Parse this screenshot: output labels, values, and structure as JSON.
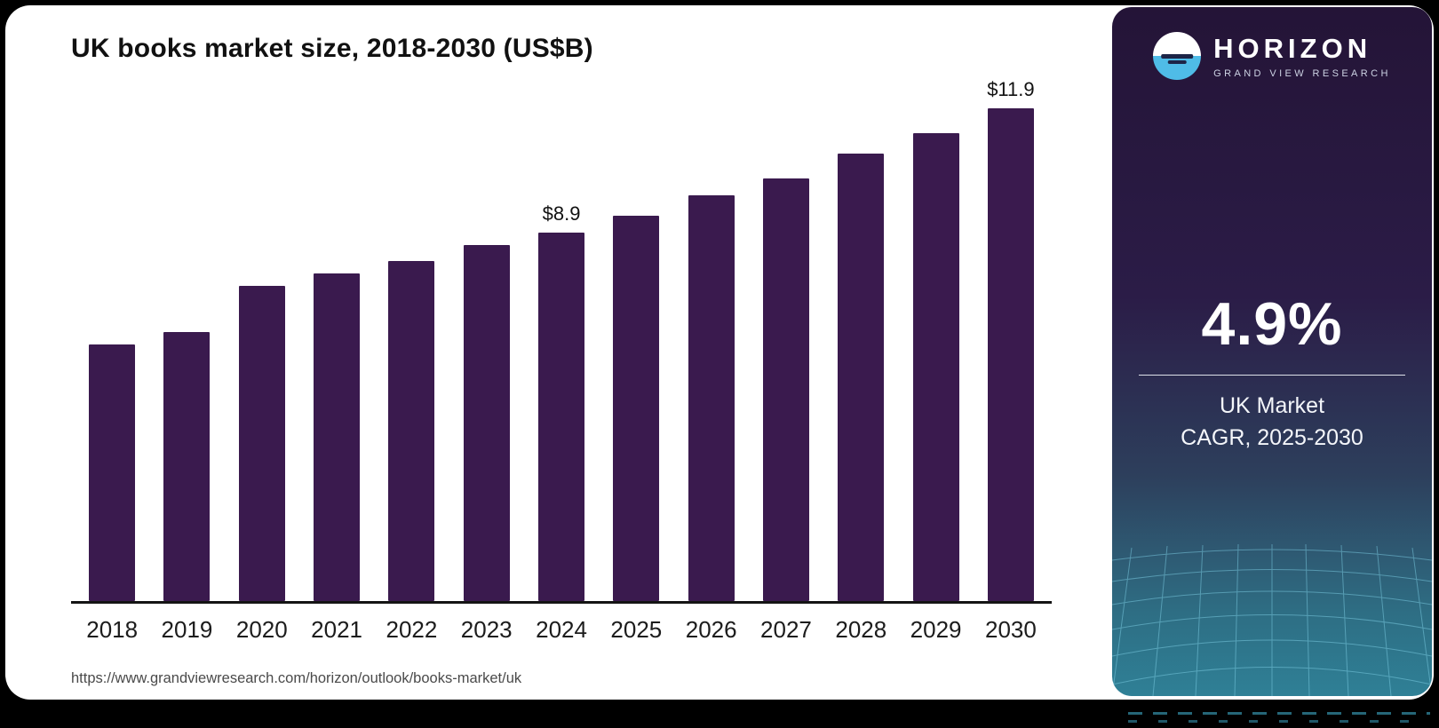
{
  "chart": {
    "title": "UK books market size, 2018-2030 (US$B)",
    "source_url": "https://www.grandviewresearch.com/horizon/outlook/books-market/uk",
    "bar_color": "#3a1a4e"
  },
  "chart_data": {
    "type": "bar",
    "title": "UK books market size, 2018-2030 (US$B)",
    "categories": [
      "2018",
      "2019",
      "2020",
      "2021",
      "2022",
      "2023",
      "2024",
      "2025",
      "2026",
      "2027",
      "2028",
      "2029",
      "2030"
    ],
    "values": [
      6.2,
      6.5,
      7.6,
      7.9,
      8.2,
      8.6,
      8.9,
      9.3,
      9.8,
      10.2,
      10.8,
      11.3,
      11.9
    ],
    "point_labels": {
      "2024": "$8.9",
      "2030": "$11.9"
    },
    "unit": "US$B",
    "ylabel": "",
    "xlabel": "",
    "ylim": [
      0,
      12.0
    ],
    "grid": false,
    "legend": false,
    "bar_color": "#3a1a4e"
  },
  "sidebar": {
    "brand_name": "HORIZON",
    "brand_subtitle": "GRAND VIEW RESEARCH",
    "stat_value": "4.9%",
    "stat_label_line1": "UK Market",
    "stat_label_line2": "CAGR, 2025-2030"
  }
}
